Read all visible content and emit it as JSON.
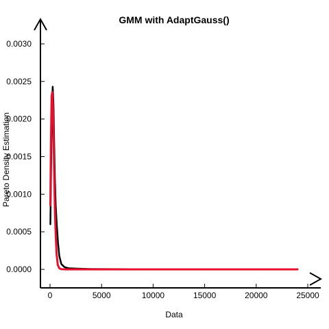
{
  "chart_data": {
    "type": "line",
    "title": "GMM with AdaptGauss()",
    "xlabel": "Data",
    "ylabel": "Pareto Density Estimation",
    "xlim": [
      -800,
      26000
    ],
    "ylim": [
      -0.00018,
      0.00315
    ],
    "x_ticks": [
      0,
      5000,
      10000,
      15000,
      20000,
      25000
    ],
    "x_tick_labels": [
      "0",
      "5000",
      "10000",
      "15000",
      "20000",
      "25000"
    ],
    "y_ticks": [
      0,
      0.0005,
      0.001,
      0.0015,
      0.002,
      0.0025,
      0.003
    ],
    "y_tick_labels": [
      "0.0000",
      "0.0005",
      "0.0010",
      "0.0015",
      "0.0020",
      "0.0025",
      "0.0030"
    ],
    "grid": false,
    "legend": "none",
    "series": [
      {
        "color": "#000000",
        "x": [
          30,
          100,
          180,
          260,
          330,
          400,
          470,
          550,
          650,
          780,
          900,
          1100,
          1400,
          1800,
          2500,
          4000,
          8000,
          16000,
          24000
        ],
        "y": [
          0.0006,
          0.0013,
          0.0021,
          0.00243,
          0.0022,
          0.0017,
          0.0012,
          0.00085,
          0.0006,
          0.00035,
          0.00018,
          7e-05,
          3e-05,
          1.5e-05,
          1e-05,
          5e-06,
          2e-06,
          1e-06,
          0.0
        ]
      },
      {
        "color": "#e8102e",
        "x": [
          30,
          80,
          150,
          220,
          280,
          340,
          400,
          470,
          550,
          640,
          750,
          900,
          1100,
          1500,
          3000,
          8000,
          16000,
          24000
        ],
        "y": [
          0.00085,
          0.0016,
          0.0023,
          0.00236,
          0.0022,
          0.0018,
          0.0013,
          0.0008,
          0.00045,
          0.0002,
          6e-05,
          1.5e-05,
          3e-06,
          0.0,
          0.0,
          0.0,
          0.0,
          0.0
        ]
      }
    ]
  }
}
